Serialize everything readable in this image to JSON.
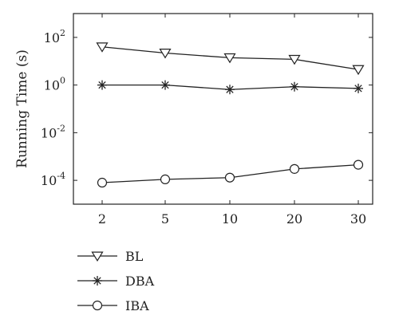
{
  "chart_data": {
    "type": "line",
    "title": "",
    "xlabel": "",
    "ylabel": "Running Time (s)",
    "y_scale": "log",
    "ylim": [
      1e-05,
      1000
    ],
    "x_tick_labels": [
      "2",
      "5",
      "10",
      "20",
      "30"
    ],
    "y_ticks": [
      {
        "value": 100,
        "base": "10",
        "exp": "2"
      },
      {
        "value": 1,
        "base": "10",
        "exp": "0"
      },
      {
        "value": 0.01,
        "base": "10",
        "exp": "-2"
      },
      {
        "value": 0.0001,
        "base": "10",
        "exp": "-4"
      }
    ],
    "grid": false,
    "legend_position": "bottom-left",
    "categories": [
      "2",
      "5",
      "10",
      "20",
      "30"
    ],
    "series": [
      {
        "name": "BL",
        "marker": "triangle-down",
        "values": [
          40,
          22,
          14,
          12,
          4.5
        ]
      },
      {
        "name": "DBA",
        "marker": "asterisk",
        "values": [
          1.0,
          1.0,
          0.65,
          0.85,
          0.72
        ]
      },
      {
        "name": "IBA",
        "marker": "circle",
        "values": [
          8e-05,
          0.00011,
          0.00013,
          0.0003,
          0.00045
        ]
      }
    ],
    "line_color": "#222222"
  }
}
